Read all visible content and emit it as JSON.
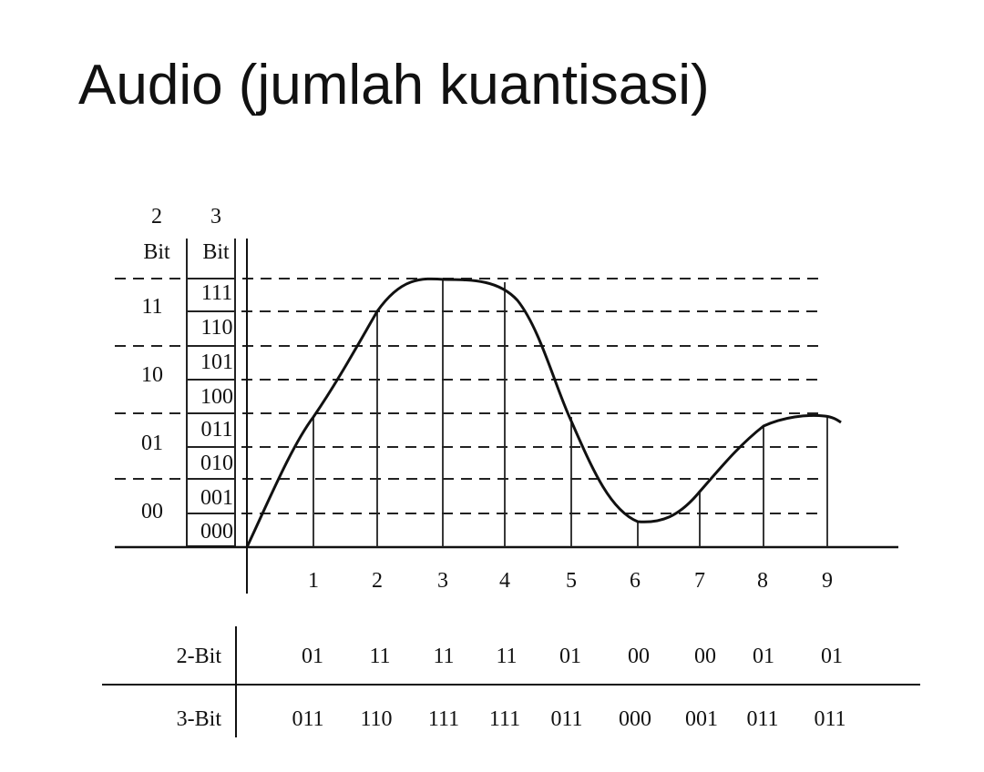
{
  "title": "Audio (jumlah kuantisasi)",
  "header_2bit": {
    "line1": "2",
    "line2": "Bit"
  },
  "header_3bit": {
    "line1": "3",
    "line2": "Bit"
  },
  "levels_2bit": [
    "11",
    "10",
    "01",
    "00"
  ],
  "levels_3bit": [
    "111",
    "110",
    "101",
    "100",
    "011",
    "010",
    "001",
    "000"
  ],
  "samples": [
    "1",
    "2",
    "3",
    "4",
    "5",
    "6",
    "7",
    "8",
    "9"
  ],
  "table": {
    "row_2bit": {
      "label": "2-Bit",
      "values": [
        "01",
        "11",
        "11",
        "11",
        "01",
        "00",
        "00",
        "01",
        "01"
      ]
    },
    "row_3bit": {
      "label": "3-Bit",
      "values": [
        "011",
        "110",
        "111",
        "111",
        "011",
        "000",
        "001",
        "011",
        "011"
      ]
    }
  }
}
